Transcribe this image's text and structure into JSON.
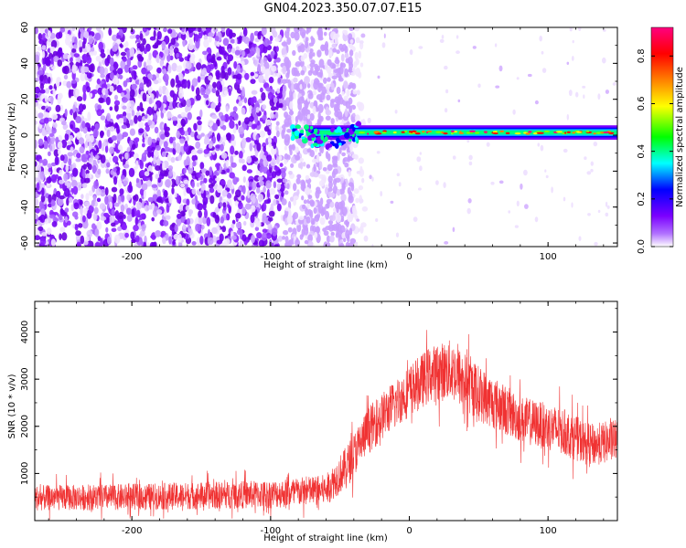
{
  "title": "GN04.2023.350.07.07.E15",
  "chart_data": [
    {
      "type": "heatmap",
      "xlabel": "Height of straight line (km)",
      "ylabel": "Frequency (Hz)",
      "xlim": [
        -270,
        150
      ],
      "ylim": [
        -62,
        60
      ],
      "xticks": [
        -200,
        -100,
        0,
        100
      ],
      "xtick_labels": [
        "-200",
        "-100",
        "0",
        "100"
      ],
      "yticks": [
        -60,
        -40,
        -20,
        0,
        20,
        40,
        60
      ],
      "ytick_labels": [
        "-60",
        "-40",
        "-20",
        "0",
        "20",
        "40",
        "60"
      ],
      "colorbar": {
        "label": "Normalized spectral amplitude",
        "range": [
          0,
          0.92
        ],
        "ticks": [
          0.0,
          0.2,
          0.4,
          0.6,
          0.8
        ],
        "tick_labels": [
          "0.0",
          "0.2",
          "0.4",
          "0.6",
          "0.8"
        ],
        "colormap": [
          "#ffffff",
          "#7b00ff",
          "#0000ff",
          "#00ffff",
          "#00ff00",
          "#ffff00",
          "#ff8000",
          "#ff0000",
          "#ff0080"
        ]
      },
      "noise_region_km": [
        -270,
        -40
      ],
      "signal_band": {
        "x_start": -85,
        "x_end": 150,
        "freq_center": 1.5,
        "freq_halfwidth": 2.5
      }
    },
    {
      "type": "line",
      "xlabel": "Height of straight line (km)",
      "ylabel": "SNR (10 * v/v)",
      "xlim": [
        -270,
        150
      ],
      "ylim": [
        0,
        4650
      ],
      "xticks": [
        -200,
        -100,
        0,
        100
      ],
      "xtick_labels": [
        "-200",
        "-100",
        "0",
        "100"
      ],
      "yticks": [
        1000,
        2000,
        3000,
        4000
      ],
      "ytick_labels": [
        "1000",
        "2000",
        "3000",
        "4000"
      ],
      "color": "#f03232",
      "envelope": {
        "x": [
          -270,
          -200,
          -100,
          -60,
          -45,
          -30,
          -15,
          0,
          15,
          30,
          50,
          80,
          110,
          130,
          150
        ],
        "mean": [
          480,
          500,
          560,
          650,
          1150,
          1900,
          2350,
          2750,
          3100,
          3200,
          2700,
          2150,
          1900,
          1600,
          1700
        ],
        "spread": [
          270,
          280,
          300,
          330,
          450,
          500,
          500,
          550,
          600,
          650,
          600,
          500,
          500,
          450,
          450
        ]
      }
    }
  ]
}
